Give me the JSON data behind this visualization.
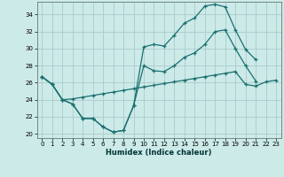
{
  "xlabel": "Humidex (Indice chaleur)",
  "bg_color": "#cceae8",
  "grid_color": "#aacccc",
  "line_color": "#1a7070",
  "xlim": [
    -0.5,
    23.5
  ],
  "ylim": [
    19.5,
    35.5
  ],
  "xticks": [
    0,
    1,
    2,
    3,
    4,
    5,
    6,
    7,
    8,
    9,
    10,
    11,
    12,
    13,
    14,
    15,
    16,
    17,
    18,
    19,
    20,
    21,
    22,
    23
  ],
  "yticks": [
    20,
    22,
    24,
    26,
    28,
    30,
    32,
    34
  ],
  "s1_x": [
    0,
    1,
    2,
    3,
    4,
    5,
    6,
    7,
    8,
    9,
    10,
    11,
    12,
    13,
    14,
    15,
    16,
    17,
    18,
    19,
    20,
    21
  ],
  "s1_y": [
    26.7,
    25.8,
    24.0,
    23.5,
    21.8,
    21.8,
    20.8,
    20.2,
    20.4,
    23.3,
    30.2,
    30.5,
    30.3,
    31.6,
    33.0,
    33.6,
    35.0,
    35.2,
    34.9,
    32.2,
    29.9,
    28.7
  ],
  "s2_x": [
    0,
    1,
    2,
    3,
    4,
    5,
    6,
    7,
    8,
    9,
    10,
    11,
    12,
    13,
    14,
    15,
    16,
    17,
    18,
    19,
    20,
    21
  ],
  "s2_y": [
    26.7,
    25.8,
    24.0,
    23.5,
    21.8,
    21.8,
    20.8,
    20.2,
    20.4,
    23.3,
    28.0,
    27.4,
    27.3,
    28.0,
    29.0,
    29.5,
    30.5,
    32.0,
    32.2,
    30.0,
    28.0,
    26.2
  ],
  "s3_x": [
    0,
    1,
    2,
    3,
    4,
    5,
    6,
    7,
    8,
    9,
    10,
    11,
    12,
    13,
    14,
    15,
    16,
    17,
    18,
    19,
    20,
    21,
    22,
    23
  ],
  "s3_y": [
    26.7,
    25.8,
    24.0,
    24.1,
    24.3,
    24.5,
    24.7,
    24.9,
    25.1,
    25.3,
    25.5,
    25.7,
    25.9,
    26.1,
    26.3,
    26.5,
    26.7,
    26.9,
    27.1,
    27.3,
    25.8,
    25.6,
    26.1,
    26.3
  ]
}
